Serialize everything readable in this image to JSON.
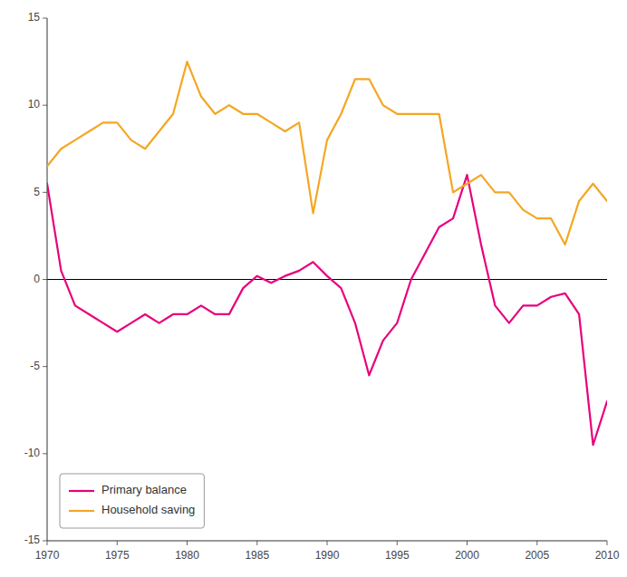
{
  "chart_data": {
    "type": "line",
    "x": [
      1970,
      1971,
      1972,
      1973,
      1974,
      1975,
      1976,
      1977,
      1978,
      1979,
      1980,
      1981,
      1982,
      1983,
      1984,
      1985,
      1986,
      1987,
      1988,
      1989,
      1990,
      1991,
      1992,
      1993,
      1994,
      1995,
      1996,
      1997,
      1998,
      1999,
      2000,
      2001,
      2002,
      2003,
      2004,
      2005,
      2006,
      2007,
      2008,
      2009,
      2010
    ],
    "series": [
      {
        "name": "Primary balance",
        "color": "#E8007D",
        "values": [
          5.5,
          0.5,
          -1.5,
          -2.0,
          -2.5,
          -3.0,
          -2.5,
          -2.0,
          -2.5,
          -2.0,
          -2.0,
          -1.5,
          -2.0,
          -2.0,
          -0.5,
          0.2,
          -0.2,
          0.2,
          0.5,
          1.0,
          0.2,
          -0.5,
          -2.5,
          -5.5,
          -3.5,
          -2.5,
          0.0,
          1.5,
          3.0,
          3.5,
          6.0,
          2.0,
          -1.5,
          -2.5,
          -1.5,
          -1.5,
          -1.0,
          -0.8,
          -2.0,
          -9.5,
          -7.0
        ]
      },
      {
        "name": "Household saving",
        "color": "#F5A623",
        "values": [
          6.5,
          7.5,
          8.0,
          8.5,
          9.0,
          9.0,
          8.0,
          7.5,
          8.5,
          9.5,
          12.5,
          10.5,
          9.5,
          10.0,
          9.5,
          9.5,
          9.0,
          8.5,
          9.0,
          3.8,
          8.0,
          9.5,
          11.5,
          11.5,
          10.0,
          9.5,
          9.5,
          9.5,
          9.5,
          5.0,
          5.5,
          6.0,
          5.0,
          5.0,
          4.0,
          3.5,
          3.5,
          2.0,
          4.5,
          5.5,
          4.5
        ]
      }
    ],
    "xlim": [
      1970,
      2010
    ],
    "xticks": [
      1970,
      1975,
      1980,
      1985,
      1990,
      1995,
      2000,
      2005,
      2010
    ],
    "ylim": [
      -15,
      15
    ],
    "yticks": [
      -15,
      -10,
      -5,
      0,
      5,
      10,
      15
    ],
    "grid": false,
    "legend": "lower left"
  }
}
